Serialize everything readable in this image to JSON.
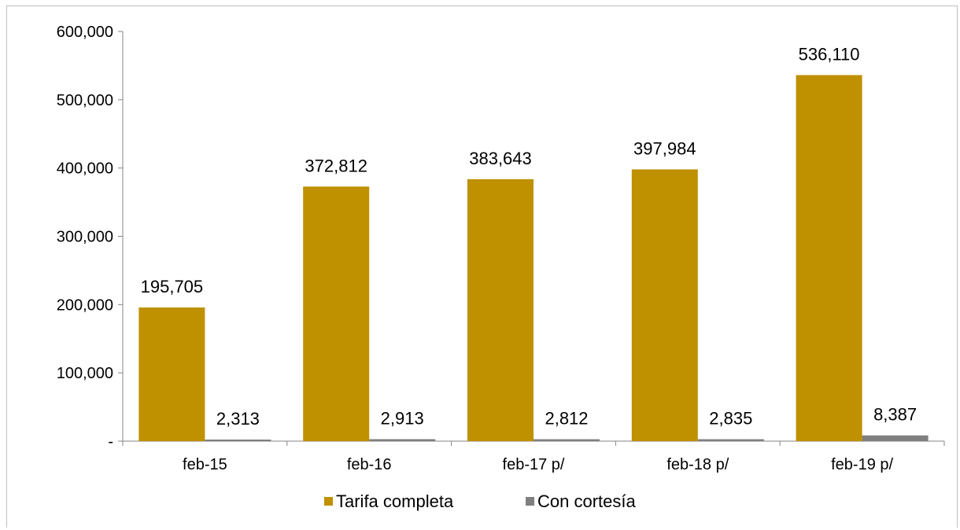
{
  "chart_data": {
    "type": "bar",
    "categories": [
      "feb-15",
      "feb-16",
      "feb-17 p/",
      "feb-18 p/",
      "feb-19 p/"
    ],
    "series": [
      {
        "name": "Tarifa completa",
        "values": [
          195705,
          372812,
          383643,
          397984,
          536110
        ],
        "labels": [
          "195,705",
          "372,812",
          "383,643",
          "397,984",
          "536,110"
        ],
        "color": "#bf9000"
      },
      {
        "name": "Con cortesía",
        "values": [
          2313,
          2913,
          2812,
          2835,
          8387
        ],
        "labels": [
          "2,313",
          "2,913",
          "2,812",
          "2,835",
          "8,387"
        ],
        "color": "#7f7f7f"
      }
    ],
    "ylim": [
      0,
      600000
    ],
    "yticks": [
      0,
      100000,
      200000,
      300000,
      400000,
      500000,
      600000
    ],
    "ytick_labels": [
      "-",
      "100,000",
      "200,000",
      "300,000",
      "400,000",
      "500,000",
      "600,000"
    ],
    "grid": false,
    "legend_position": "bottom"
  }
}
